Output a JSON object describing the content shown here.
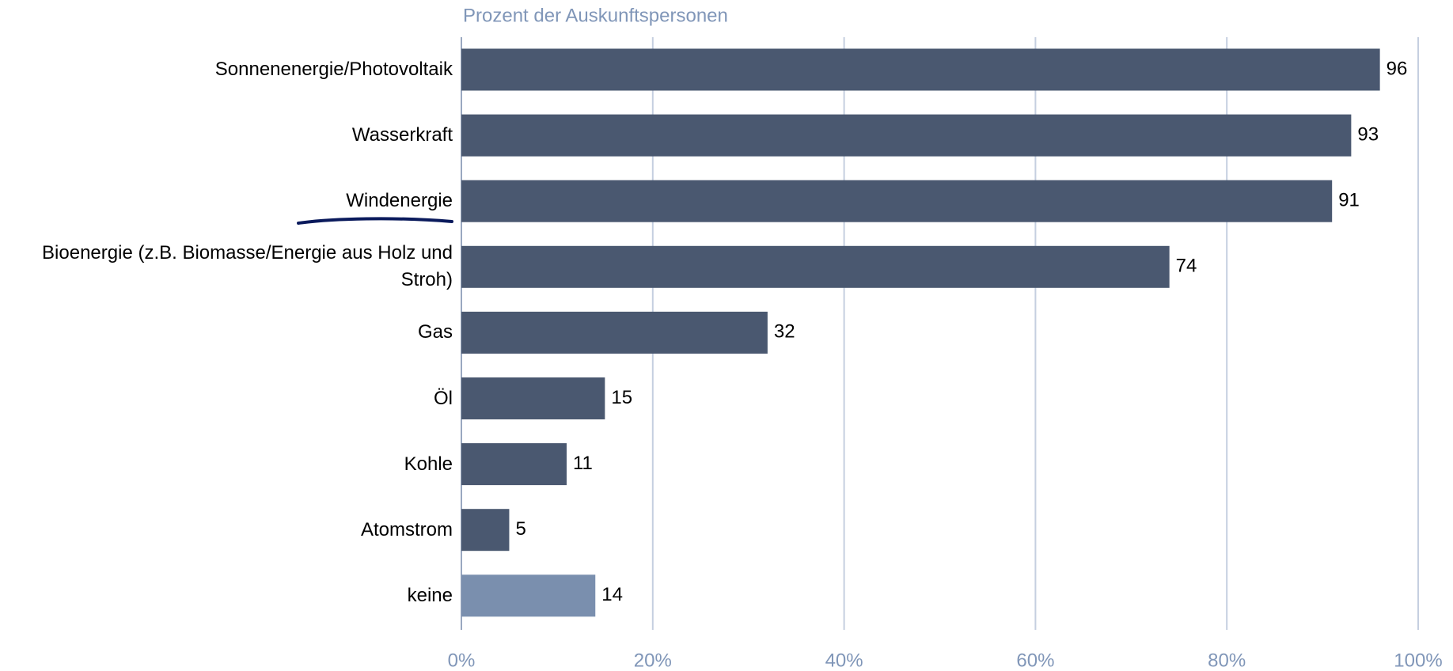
{
  "chart_data": {
    "type": "bar",
    "orientation": "horizontal",
    "subtitle": "Prozent der Auskunftspersonen",
    "categories": [
      "Sonnenenergie/Photovoltaik",
      "Wasserkraft",
      "Windenergie",
      "Bioenergie (z.B. Biomasse/Energie aus Holz und Stroh)",
      "Gas",
      "Öl",
      "Kohle",
      "Atomstrom",
      "keine"
    ],
    "values": [
      96,
      93,
      91,
      74,
      32,
      15,
      11,
      5,
      14
    ],
    "colors": [
      "#4a5870",
      "#4a5870",
      "#4a5870",
      "#4a5870",
      "#4a5870",
      "#4a5870",
      "#4a5870",
      "#4a5870",
      "#7a8fae"
    ],
    "xlim": [
      0,
      100
    ],
    "xticks": [
      {
        "value": 0,
        "label": "0%"
      },
      {
        "value": 20,
        "label": "20%"
      },
      {
        "value": 40,
        "label": "40%"
      },
      {
        "value": 60,
        "label": "60%"
      },
      {
        "value": 80,
        "label": "80%"
      },
      {
        "value": 100,
        "label": "100%"
      }
    ],
    "grid": true
  }
}
